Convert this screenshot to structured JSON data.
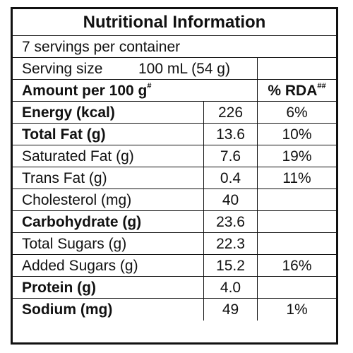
{
  "title": "Nutritional Information",
  "servings_per_container": "7 servings per container",
  "serving_size": {
    "label": "Serving size",
    "amount": "100 mL (54 g)"
  },
  "header": {
    "amount_label": "Amount per 100 g",
    "amount_mark": "#",
    "rda_label": "% RDA",
    "rda_mark": "##"
  },
  "rows": [
    {
      "name": "Energy (kcal)",
      "value": "226",
      "rda": "6%"
    },
    {
      "name": "Total Fat (g)",
      "value": "13.6",
      "rda": "10%"
    },
    {
      "name": "Saturated Fat (g)",
      "value": "7.6",
      "rda": "19%"
    },
    {
      "name": "Trans Fat (g)",
      "value": "0.4",
      "rda": "11%"
    },
    {
      "name": "Cholesterol (mg)",
      "value": "40",
      "rda": ""
    },
    {
      "name": "Carbohydrate (g)",
      "value": "23.6",
      "rda": ""
    },
    {
      "name": "Total Sugars (g)",
      "value": "22.3",
      "rda": ""
    },
    {
      "name": "Added Sugars (g)",
      "value": "15.2",
      "rda": "16%"
    },
    {
      "name": "Protein (g)",
      "value": "4.0",
      "rda": ""
    },
    {
      "name": "Sodium (mg)",
      "value": "49",
      "rda": "1%"
    }
  ]
}
